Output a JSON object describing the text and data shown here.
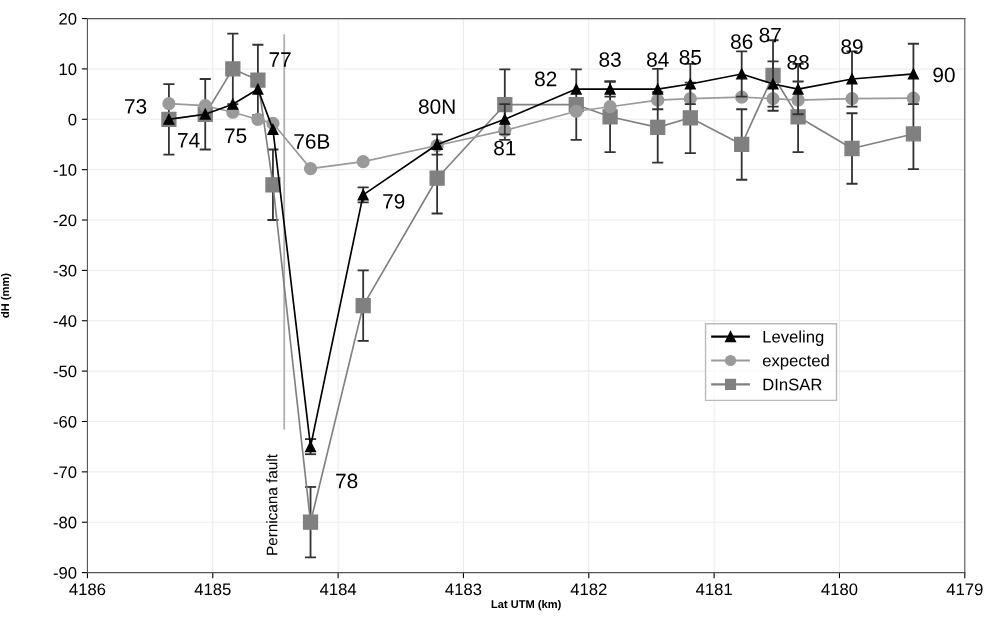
{
  "chart_data": {
    "type": "line",
    "xlabel": "Lat UTM (km)",
    "ylabel": "dH (mm)",
    "x": [
      4185.35,
      4185.06,
      4184.84,
      4184.64,
      4184.52,
      4184.22,
      4183.8,
      4183.21,
      4182.67,
      4182.1,
      4181.83,
      4181.45,
      4181.19,
      4180.78,
      4180.53,
      4180.33,
      4179.9,
      4179.41
    ],
    "series": [
      {
        "name": "Leveling",
        "color": "#000000",
        "marker": "triangle",
        "values": [
          0,
          1,
          3,
          6,
          -2,
          -65,
          -15,
          -5,
          0,
          6,
          6,
          6,
          7,
          9,
          7,
          6,
          8,
          9
        ],
        "errors": [
          null,
          null,
          null,
          null,
          null,
          1.5,
          1.5,
          2,
          3,
          null,
          1.5,
          4,
          4,
          4.5,
          4.5,
          5,
          5.5,
          6
        ]
      },
      {
        "name": "expected",
        "color": "#9a9a9a",
        "marker": "circle",
        "values": [
          3.1,
          2.7,
          1.4,
          0,
          -0.8,
          -9.8,
          -8.4,
          -5.2,
          -2.2,
          1.6,
          2.5,
          3.8,
          4.1,
          4.4,
          4.1,
          3.8,
          4.1,
          4.2
        ]
      },
      {
        "name": "DInSAR",
        "color": "#808080",
        "marker": "square",
        "values": [
          0,
          1,
          10,
          7.8,
          -13,
          -80,
          -37,
          -11.7,
          2.9,
          2.9,
          0.5,
          -1.6,
          0.3,
          -5,
          8.7,
          0.5,
          -5.8,
          -2.9
        ],
        "errors": [
          7,
          7,
          7,
          7,
          7,
          7,
          7,
          7,
          7,
          7,
          7,
          7,
          7,
          7,
          7,
          7,
          7,
          7
        ]
      }
    ],
    "annotations": [
      {
        "text": "73",
        "x": 4185.35,
        "y": 0
      },
      {
        "text": "74",
        "x": 4185.06,
        "y": 1
      },
      {
        "text": "75",
        "x": 4184.84,
        "y": 3
      },
      {
        "text": "77",
        "x": 4184.64,
        "y": 6
      },
      {
        "text": "76B",
        "x": 4184.52,
        "y": -2
      },
      {
        "text": "78",
        "x": 4184.22,
        "y": -65
      },
      {
        "text": "79",
        "x": 4183.8,
        "y": -15
      },
      {
        "text": "80N",
        "x": 4183.21,
        "y": -5
      },
      {
        "text": "81",
        "x": 4182.67,
        "y": 0
      },
      {
        "text": "82",
        "x": 4182.1,
        "y": 6
      },
      {
        "text": "83",
        "x": 4181.83,
        "y": 6
      },
      {
        "text": "84",
        "x": 4181.45,
        "y": 6
      },
      {
        "text": "85",
        "x": 4181.19,
        "y": 7
      },
      {
        "text": "86",
        "x": 4180.78,
        "y": 9
      },
      {
        "text": "87",
        "x": 4180.53,
        "y": 7
      },
      {
        "text": "88",
        "x": 4180.33,
        "y": 6
      },
      {
        "text": "89",
        "x": 4179.9,
        "y": 8
      },
      {
        "text": "90",
        "x": 4179.41,
        "y": 9
      }
    ],
    "ref_lines": [
      {
        "axis": "x",
        "value": 4184.43,
        "label": "Pernicana fault",
        "color": "#b0b0b0"
      }
    ],
    "xlim": [
      4186,
      4179
    ],
    "xticks": [
      4186,
      4185,
      4184,
      4183,
      4182,
      4181,
      4180,
      4179
    ],
    "ylim": [
      -90,
      20
    ],
    "yticks": [
      20,
      10,
      0,
      -10,
      -20,
      -30,
      -40,
      -50,
      -60,
      -70,
      -80,
      -90
    ],
    "grid": true,
    "legend": "right",
    "line_style": "solid"
  }
}
